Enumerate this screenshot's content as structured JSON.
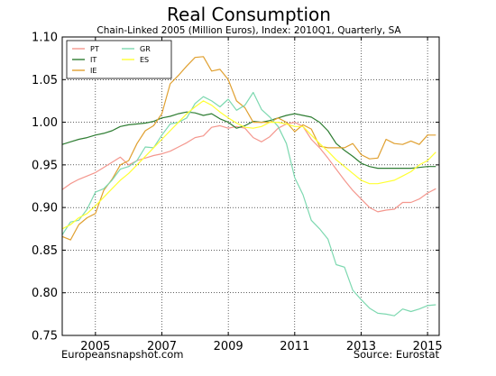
{
  "chart_data": {
    "type": "line",
    "title": "Real Consumption",
    "subtitle": "Chain-Linked 2005 (Million Euros), Index: 2010Q1, Quarterly, SA",
    "xlabel": "",
    "ylabel": "",
    "xlim": [
      2004.0,
      2015.35
    ],
    "ylim": [
      0.75,
      1.1
    ],
    "x_ticks": [
      2005,
      2007,
      2009,
      2011,
      2013,
      2015
    ],
    "x_tick_labels": [
      "2005",
      "2007",
      "2009",
      "2011",
      "2013",
      "2015"
    ],
    "y_ticks": [
      0.75,
      0.8,
      0.85,
      0.9,
      0.95,
      1.0,
      1.05,
      1.1
    ],
    "y_tick_labels": [
      "0.75",
      "0.80",
      "0.85",
      "0.90",
      "0.95",
      "1.00",
      "1.05",
      "1.10"
    ],
    "grid": true,
    "legend_position": "top-left",
    "x": [
      2004.0,
      2004.25,
      2004.5,
      2004.75,
      2005.0,
      2005.25,
      2005.5,
      2005.75,
      2006.0,
      2006.25,
      2006.5,
      2006.75,
      2007.0,
      2007.25,
      2007.5,
      2007.75,
      2008.0,
      2008.25,
      2008.5,
      2008.75,
      2009.0,
      2009.25,
      2009.5,
      2009.75,
      2010.0,
      2010.25,
      2010.5,
      2010.75,
      2011.0,
      2011.25,
      2011.5,
      2011.75,
      2012.0,
      2012.25,
      2012.5,
      2012.75,
      2013.0,
      2013.25,
      2013.5,
      2013.75,
      2014.0,
      2014.25,
      2014.5,
      2014.75,
      2015.0,
      2015.25
    ],
    "series": [
      {
        "name": "PT",
        "color": "#f4978e",
        "values": [
          0.921,
          0.928,
          0.933,
          0.937,
          0.941,
          0.947,
          0.953,
          0.959,
          0.95,
          0.955,
          0.958,
          0.961,
          0.963,
          0.966,
          0.971,
          0.976,
          0.982,
          0.984,
          0.994,
          0.996,
          0.993,
          0.995,
          0.993,
          0.982,
          0.977,
          0.983,
          0.993,
          0.998,
          1.0,
          0.995,
          0.98,
          0.97,
          0.958,
          0.945,
          0.932,
          0.92,
          0.91,
          0.9,
          0.895,
          0.897,
          0.898,
          0.906,
          0.906,
          0.91,
          0.917,
          0.922
        ]
      },
      {
        "name": "IT",
        "color": "#2e7d32",
        "values": [
          0.974,
          0.977,
          0.98,
          0.982,
          0.985,
          0.987,
          0.99,
          0.995,
          0.997,
          0.998,
          0.999,
          1.001,
          1.005,
          1.007,
          1.01,
          1.012,
          1.011,
          1.008,
          1.01,
          1.004,
          1.0,
          0.993,
          0.996,
          1.001,
          1.0,
          1.002,
          1.005,
          1.008,
          1.01,
          1.008,
          1.006,
          1.0,
          0.99,
          0.975,
          0.967,
          0.96,
          0.952,
          0.948,
          0.946,
          0.946,
          0.946,
          0.946,
          0.946,
          0.947,
          0.948,
          0.948
        ]
      },
      {
        "name": "IE",
        "color": "#e0a030",
        "values": [
          0.866,
          0.862,
          0.88,
          0.888,
          0.893,
          0.92,
          0.933,
          0.95,
          0.955,
          0.975,
          0.99,
          0.996,
          1.01,
          1.045,
          1.055,
          1.066,
          1.076,
          1.077,
          1.06,
          1.062,
          1.05,
          1.025,
          1.017,
          1.0,
          1.0,
          1.0,
          1.005,
          1.0,
          0.989,
          0.997,
          0.992,
          0.972,
          0.97,
          0.97,
          0.97,
          0.975,
          0.962,
          0.957,
          0.958,
          0.98,
          0.975,
          0.974,
          0.978,
          0.974,
          0.985,
          0.985
        ]
      },
      {
        "name": "GR",
        "color": "#7dd8b0",
        "values": [
          0.868,
          0.883,
          0.885,
          0.898,
          0.918,
          0.922,
          0.932,
          0.945,
          0.948,
          0.955,
          0.971,
          0.97,
          0.985,
          0.998,
          1.0,
          1.005,
          1.022,
          1.03,
          1.025,
          1.018,
          1.027,
          1.014,
          1.02,
          1.035,
          1.015,
          1.006,
          0.995,
          0.975,
          0.935,
          0.915,
          0.885,
          0.875,
          0.863,
          0.833,
          0.83,
          0.803,
          0.792,
          0.782,
          0.776,
          0.775,
          0.773,
          0.781,
          0.778,
          0.781,
          0.785,
          0.786
        ]
      },
      {
        "name": "ES",
        "color": "#ffff33",
        "values": [
          0.875,
          0.88,
          0.888,
          0.893,
          0.902,
          0.912,
          0.922,
          0.932,
          0.94,
          0.95,
          0.96,
          0.97,
          0.98,
          0.99,
          1.0,
          1.01,
          1.018,
          1.025,
          1.02,
          1.012,
          1.005,
          0.999,
          0.994,
          0.993,
          0.995,
          1.0,
          1.0,
          0.998,
          0.995,
          0.995,
          0.985,
          0.975,
          0.966,
          0.956,
          0.948,
          0.94,
          0.932,
          0.928,
          0.928,
          0.93,
          0.932,
          0.937,
          0.942,
          0.95,
          0.955,
          0.965
        ]
      }
    ],
    "footer_left": "Europeansnapshot.com",
    "footer_right": "Source: Eurostat"
  }
}
